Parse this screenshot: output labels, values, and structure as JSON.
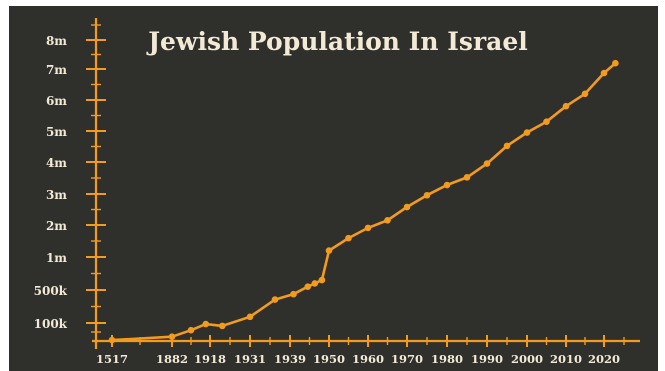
{
  "chart_data": {
    "type": "line",
    "title": "Jewish Population In Israel",
    "xlabel": "",
    "ylabel": "",
    "y_tick_labels": [
      "100k",
      "500k",
      "1m",
      "2m",
      "3m",
      "4m",
      "5m",
      "6m",
      "7m",
      "8m"
    ],
    "x_tick_labels": [
      "1517",
      "1882",
      "1918",
      "1931",
      "1939",
      "1950",
      "1960",
      "1970",
      "1980",
      "1990",
      "2000",
      "2010",
      "2020"
    ],
    "grid": false,
    "legend": "none",
    "colors": {
      "background": "#2f2f2c",
      "accent": "#f29b1d",
      "text": "#f3ead6",
      "outer": "#ffffff"
    },
    "series": [
      {
        "points": [
          {
            "x": 1517,
            "y": 0.005
          },
          {
            "x": 1882,
            "y": 0.024
          },
          {
            "x": 1900,
            "y": 0.06
          },
          {
            "x": 1914,
            "y": 0.094
          },
          {
            "x": 1922,
            "y": 0.084
          },
          {
            "x": 1931,
            "y": 0.175
          },
          {
            "x": 1936,
            "y": 0.384
          },
          {
            "x": 1940,
            "y": 0.45
          },
          {
            "x": 1944,
            "y": 0.55
          },
          {
            "x": 1946,
            "y": 0.6
          },
          {
            "x": 1948,
            "y": 0.65
          },
          {
            "x": 1950,
            "y": 1.2
          },
          {
            "x": 1955,
            "y": 1.59
          },
          {
            "x": 1960,
            "y": 1.91
          },
          {
            "x": 1965,
            "y": 2.15
          },
          {
            "x": 1970,
            "y": 2.58
          },
          {
            "x": 1975,
            "y": 2.96
          },
          {
            "x": 1980,
            "y": 3.28
          },
          {
            "x": 1985,
            "y": 3.52
          },
          {
            "x": 1990,
            "y": 3.95
          },
          {
            "x": 1995,
            "y": 4.52
          },
          {
            "x": 2000,
            "y": 4.95
          },
          {
            "x": 2005,
            "y": 5.3
          },
          {
            "x": 2010,
            "y": 5.8
          },
          {
            "x": 2015,
            "y": 6.2
          },
          {
            "x": 2020,
            "y": 6.87
          },
          {
            "x": 2023,
            "y": 7.2
          }
        ]
      }
    ]
  }
}
